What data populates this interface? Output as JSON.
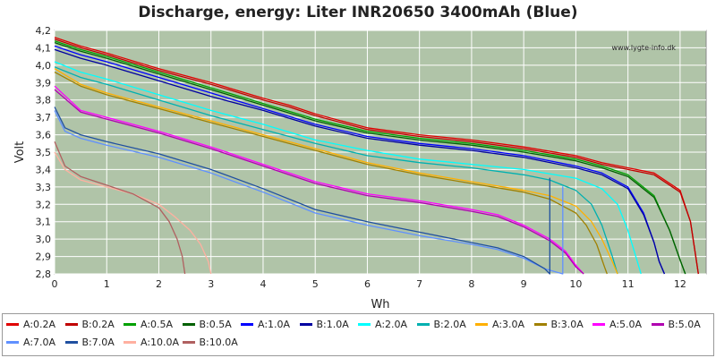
{
  "chart_data": {
    "type": "line",
    "title": "Discharge, energy: Liter INR20650 3400mAh (Blue)",
    "xlabel": "Wh",
    "ylabel": "Volt",
    "watermark": "www.lygte-info.dk",
    "xlim": [
      0,
      12.5
    ],
    "ylim": [
      2.8,
      4.2
    ],
    "xticks": [
      0,
      1,
      2,
      3,
      4,
      5,
      6,
      7,
      8,
      9,
      10,
      11,
      12
    ],
    "yticks": [
      "2,8",
      "2,9",
      "3,0",
      "3,1",
      "3,2",
      "3,3",
      "3,4",
      "3,5",
      "3,6",
      "3,7",
      "3,8",
      "3,9",
      "4,0",
      "4,1",
      "4,2"
    ],
    "grid": true,
    "legend_position": "bottom",
    "colors": {
      "plot_bg": "#b0c4a8",
      "grid": "#ffffff"
    },
    "series": [
      {
        "name": "A:0.2A",
        "color": "#e00000",
        "x": [
          0,
          0.5,
          1,
          2,
          3,
          4,
          4.5,
          5,
          6,
          7,
          8,
          9,
          10,
          10.5,
          11,
          11.5,
          12,
          12.2,
          12.3,
          12.35
        ],
        "y": [
          4.16,
          4.11,
          4.07,
          3.98,
          3.9,
          3.81,
          3.77,
          3.72,
          3.64,
          3.6,
          3.57,
          3.53,
          3.48,
          3.44,
          3.41,
          3.38,
          3.28,
          3.1,
          2.9,
          2.8
        ]
      },
      {
        "name": "B:0.2A",
        "color": "#c00000",
        "x": [
          0,
          0.5,
          1,
          2,
          3,
          4,
          4.5,
          5,
          6,
          7,
          8,
          9,
          10,
          10.5,
          11,
          11.5,
          12,
          12.2,
          12.3,
          12.35
        ],
        "y": [
          4.15,
          4.1,
          4.06,
          3.97,
          3.89,
          3.8,
          3.76,
          3.71,
          3.63,
          3.59,
          3.56,
          3.52,
          3.47,
          3.43,
          3.4,
          3.37,
          3.27,
          3.1,
          2.9,
          2.8
        ]
      },
      {
        "name": "A:0.5A",
        "color": "#00a000",
        "x": [
          0,
          0.5,
          1,
          2,
          3,
          4,
          5,
          6,
          7,
          8,
          9,
          10,
          10.5,
          11,
          11.5,
          11.8,
          12.0,
          12.1
        ],
        "y": [
          4.14,
          4.09,
          4.05,
          3.96,
          3.87,
          3.78,
          3.69,
          3.62,
          3.58,
          3.55,
          3.51,
          3.46,
          3.42,
          3.37,
          3.25,
          3.05,
          2.88,
          2.8
        ]
      },
      {
        "name": "B:0.5A",
        "color": "#006000",
        "x": [
          0,
          0.5,
          1,
          2,
          3,
          4,
          5,
          6,
          7,
          8,
          9,
          10,
          10.5,
          11,
          11.5,
          11.8,
          12.0,
          12.1
        ],
        "y": [
          4.13,
          4.08,
          4.04,
          3.95,
          3.86,
          3.77,
          3.68,
          3.61,
          3.57,
          3.54,
          3.5,
          3.45,
          3.41,
          3.36,
          3.24,
          3.05,
          2.88,
          2.8
        ]
      },
      {
        "name": "A:1.0A",
        "color": "#0000ff",
        "x": [
          0,
          0.5,
          1,
          2,
          3,
          4,
          5,
          6,
          7,
          8,
          9,
          10,
          10.5,
          11,
          11.3,
          11.5,
          11.6,
          11.7
        ],
        "y": [
          4.11,
          4.06,
          4.02,
          3.93,
          3.84,
          3.75,
          3.66,
          3.59,
          3.55,
          3.52,
          3.48,
          3.42,
          3.38,
          3.3,
          3.15,
          2.98,
          2.87,
          2.8
        ]
      },
      {
        "name": "B:1.0A",
        "color": "#0000a0",
        "x": [
          0,
          0.5,
          1,
          2,
          3,
          4,
          5,
          6,
          7,
          8,
          9,
          10,
          10.5,
          11,
          11.3,
          11.5,
          11.6,
          11.7
        ],
        "y": [
          4.09,
          4.04,
          4.0,
          3.91,
          3.82,
          3.74,
          3.65,
          3.58,
          3.54,
          3.51,
          3.47,
          3.41,
          3.37,
          3.29,
          3.14,
          2.98,
          2.87,
          2.8
        ]
      },
      {
        "name": "A:2.0A",
        "color": "#00ffff",
        "x": [
          0,
          0.5,
          1,
          2,
          3,
          4,
          5,
          6,
          7,
          8,
          9,
          10,
          10.5,
          10.8,
          11.0,
          11.15,
          11.25
        ],
        "y": [
          4.02,
          3.96,
          3.92,
          3.83,
          3.74,
          3.66,
          3.57,
          3.51,
          3.46,
          3.43,
          3.4,
          3.35,
          3.29,
          3.2,
          3.05,
          2.9,
          2.8
        ]
      },
      {
        "name": "B:2.0A",
        "color": "#00b0b0",
        "x": [
          0,
          0.5,
          1,
          2,
          3,
          4,
          5,
          6,
          7,
          8,
          9,
          9.5,
          10,
          10.3,
          10.5,
          10.7,
          10.8
        ],
        "y": [
          3.99,
          3.93,
          3.89,
          3.8,
          3.71,
          3.63,
          3.55,
          3.48,
          3.44,
          3.41,
          3.37,
          3.34,
          3.28,
          3.2,
          3.08,
          2.9,
          2.8
        ]
      },
      {
        "name": "A:3.0A",
        "color": "#ffb000",
        "x": [
          0,
          0.5,
          1,
          2,
          3,
          4,
          5,
          6,
          7,
          8,
          9,
          9.5,
          10,
          10.3,
          10.5,
          10.7,
          10.8
        ],
        "y": [
          3.98,
          3.89,
          3.84,
          3.76,
          3.68,
          3.6,
          3.52,
          3.44,
          3.38,
          3.33,
          3.28,
          3.25,
          3.19,
          3.1,
          3.0,
          2.87,
          2.8
        ]
      },
      {
        "name": "B:3.0A",
        "color": "#a08000",
        "x": [
          0,
          0.5,
          1,
          2,
          3,
          4,
          5,
          6,
          7,
          8,
          9,
          9.5,
          10,
          10.2,
          10.4,
          10.55,
          10.6
        ],
        "y": [
          3.96,
          3.88,
          3.83,
          3.75,
          3.67,
          3.59,
          3.51,
          3.43,
          3.37,
          3.32,
          3.27,
          3.23,
          3.15,
          3.08,
          2.97,
          2.84,
          2.8
        ]
      },
      {
        "name": "A:5.0A",
        "color": "#ff00ff",
        "x": [
          0,
          0.5,
          1,
          2,
          3,
          4,
          5,
          6,
          7,
          8,
          8.5,
          9,
          9.5,
          9.8,
          10.0,
          10.15
        ],
        "y": [
          3.88,
          3.74,
          3.7,
          3.62,
          3.53,
          3.43,
          3.33,
          3.26,
          3.22,
          3.17,
          3.14,
          3.08,
          3.0,
          2.93,
          2.85,
          2.8
        ]
      },
      {
        "name": "B:5.0A",
        "color": "#b000b0",
        "x": [
          0,
          0.5,
          1,
          2,
          3,
          4,
          5,
          6,
          7,
          8,
          8.5,
          9,
          9.5,
          9.8,
          10.0,
          10.15
        ],
        "y": [
          3.86,
          3.73,
          3.69,
          3.61,
          3.52,
          3.42,
          3.32,
          3.25,
          3.21,
          3.16,
          3.13,
          3.07,
          2.99,
          2.92,
          2.84,
          2.8
        ]
      },
      {
        "name": "A:7.0A",
        "color": "#6090ff",
        "x": [
          0,
          0.2,
          0.5,
          1,
          2,
          3,
          4,
          5,
          6,
          7,
          8,
          8.5,
          9,
          9.4,
          9.75,
          9.75,
          9.75
        ],
        "y": [
          3.74,
          3.62,
          3.58,
          3.54,
          3.47,
          3.38,
          3.27,
          3.15,
          3.08,
          3.02,
          2.97,
          2.94,
          2.89,
          2.83,
          2.8,
          3.3,
          2.8
        ]
      },
      {
        "name": "B:7.0A",
        "color": "#2050a0",
        "x": [
          0,
          0.2,
          0.5,
          1,
          2,
          3,
          4,
          5,
          6,
          7,
          8,
          8.5,
          9,
          9.4,
          9.5,
          9.5,
          9.5
        ],
        "y": [
          3.76,
          3.64,
          3.6,
          3.56,
          3.49,
          3.4,
          3.29,
          3.17,
          3.1,
          3.04,
          2.98,
          2.95,
          2.9,
          2.83,
          2.8,
          3.35,
          2.8
        ]
      },
      {
        "name": "A:10.0A",
        "color": "#ffb0a0",
        "x": [
          0,
          0.2,
          0.5,
          1,
          1.5,
          2,
          2.3,
          2.6,
          2.8,
          2.95,
          3.0
        ],
        "y": [
          3.5,
          3.4,
          3.34,
          3.3,
          3.26,
          3.2,
          3.13,
          3.05,
          2.97,
          2.87,
          2.8
        ]
      },
      {
        "name": "B:10.0A",
        "color": "#b06060",
        "x": [
          0,
          0.2,
          0.5,
          1,
          1.5,
          2,
          2.2,
          2.35,
          2.45,
          2.5
        ],
        "y": [
          3.56,
          3.42,
          3.36,
          3.31,
          3.26,
          3.18,
          3.1,
          3.0,
          2.9,
          2.8
        ]
      }
    ]
  }
}
